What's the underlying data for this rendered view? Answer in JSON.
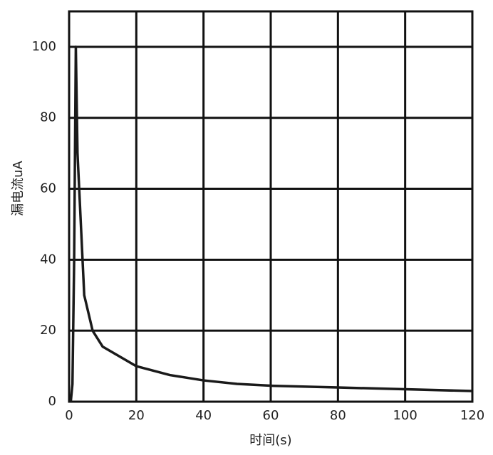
{
  "chart_data": {
    "type": "line",
    "x_label": "时间(s)",
    "y_label": "漏电流uA",
    "series": [
      {
        "color": "#1a1a1a",
        "x": [
          0.5,
          1,
          1.5,
          2,
          2.5,
          3.5,
          4.5,
          7,
          10,
          20,
          30,
          40,
          50,
          60,
          80,
          100,
          120
        ],
        "values": [
          0,
          5,
          40,
          100,
          70,
          50,
          30,
          20,
          15.5,
          10,
          7.5,
          6,
          5,
          4.5,
          4,
          3.5,
          3
        ]
      }
    ],
    "xlim": [
      0,
      120
    ],
    "xticks": [
      0,
      20,
      40,
      60,
      80,
      100,
      120
    ],
    "ylim": [
      0,
      110
    ],
    "yticks": [
      0,
      20,
      40,
      60,
      80,
      100
    ],
    "grid": true
  }
}
